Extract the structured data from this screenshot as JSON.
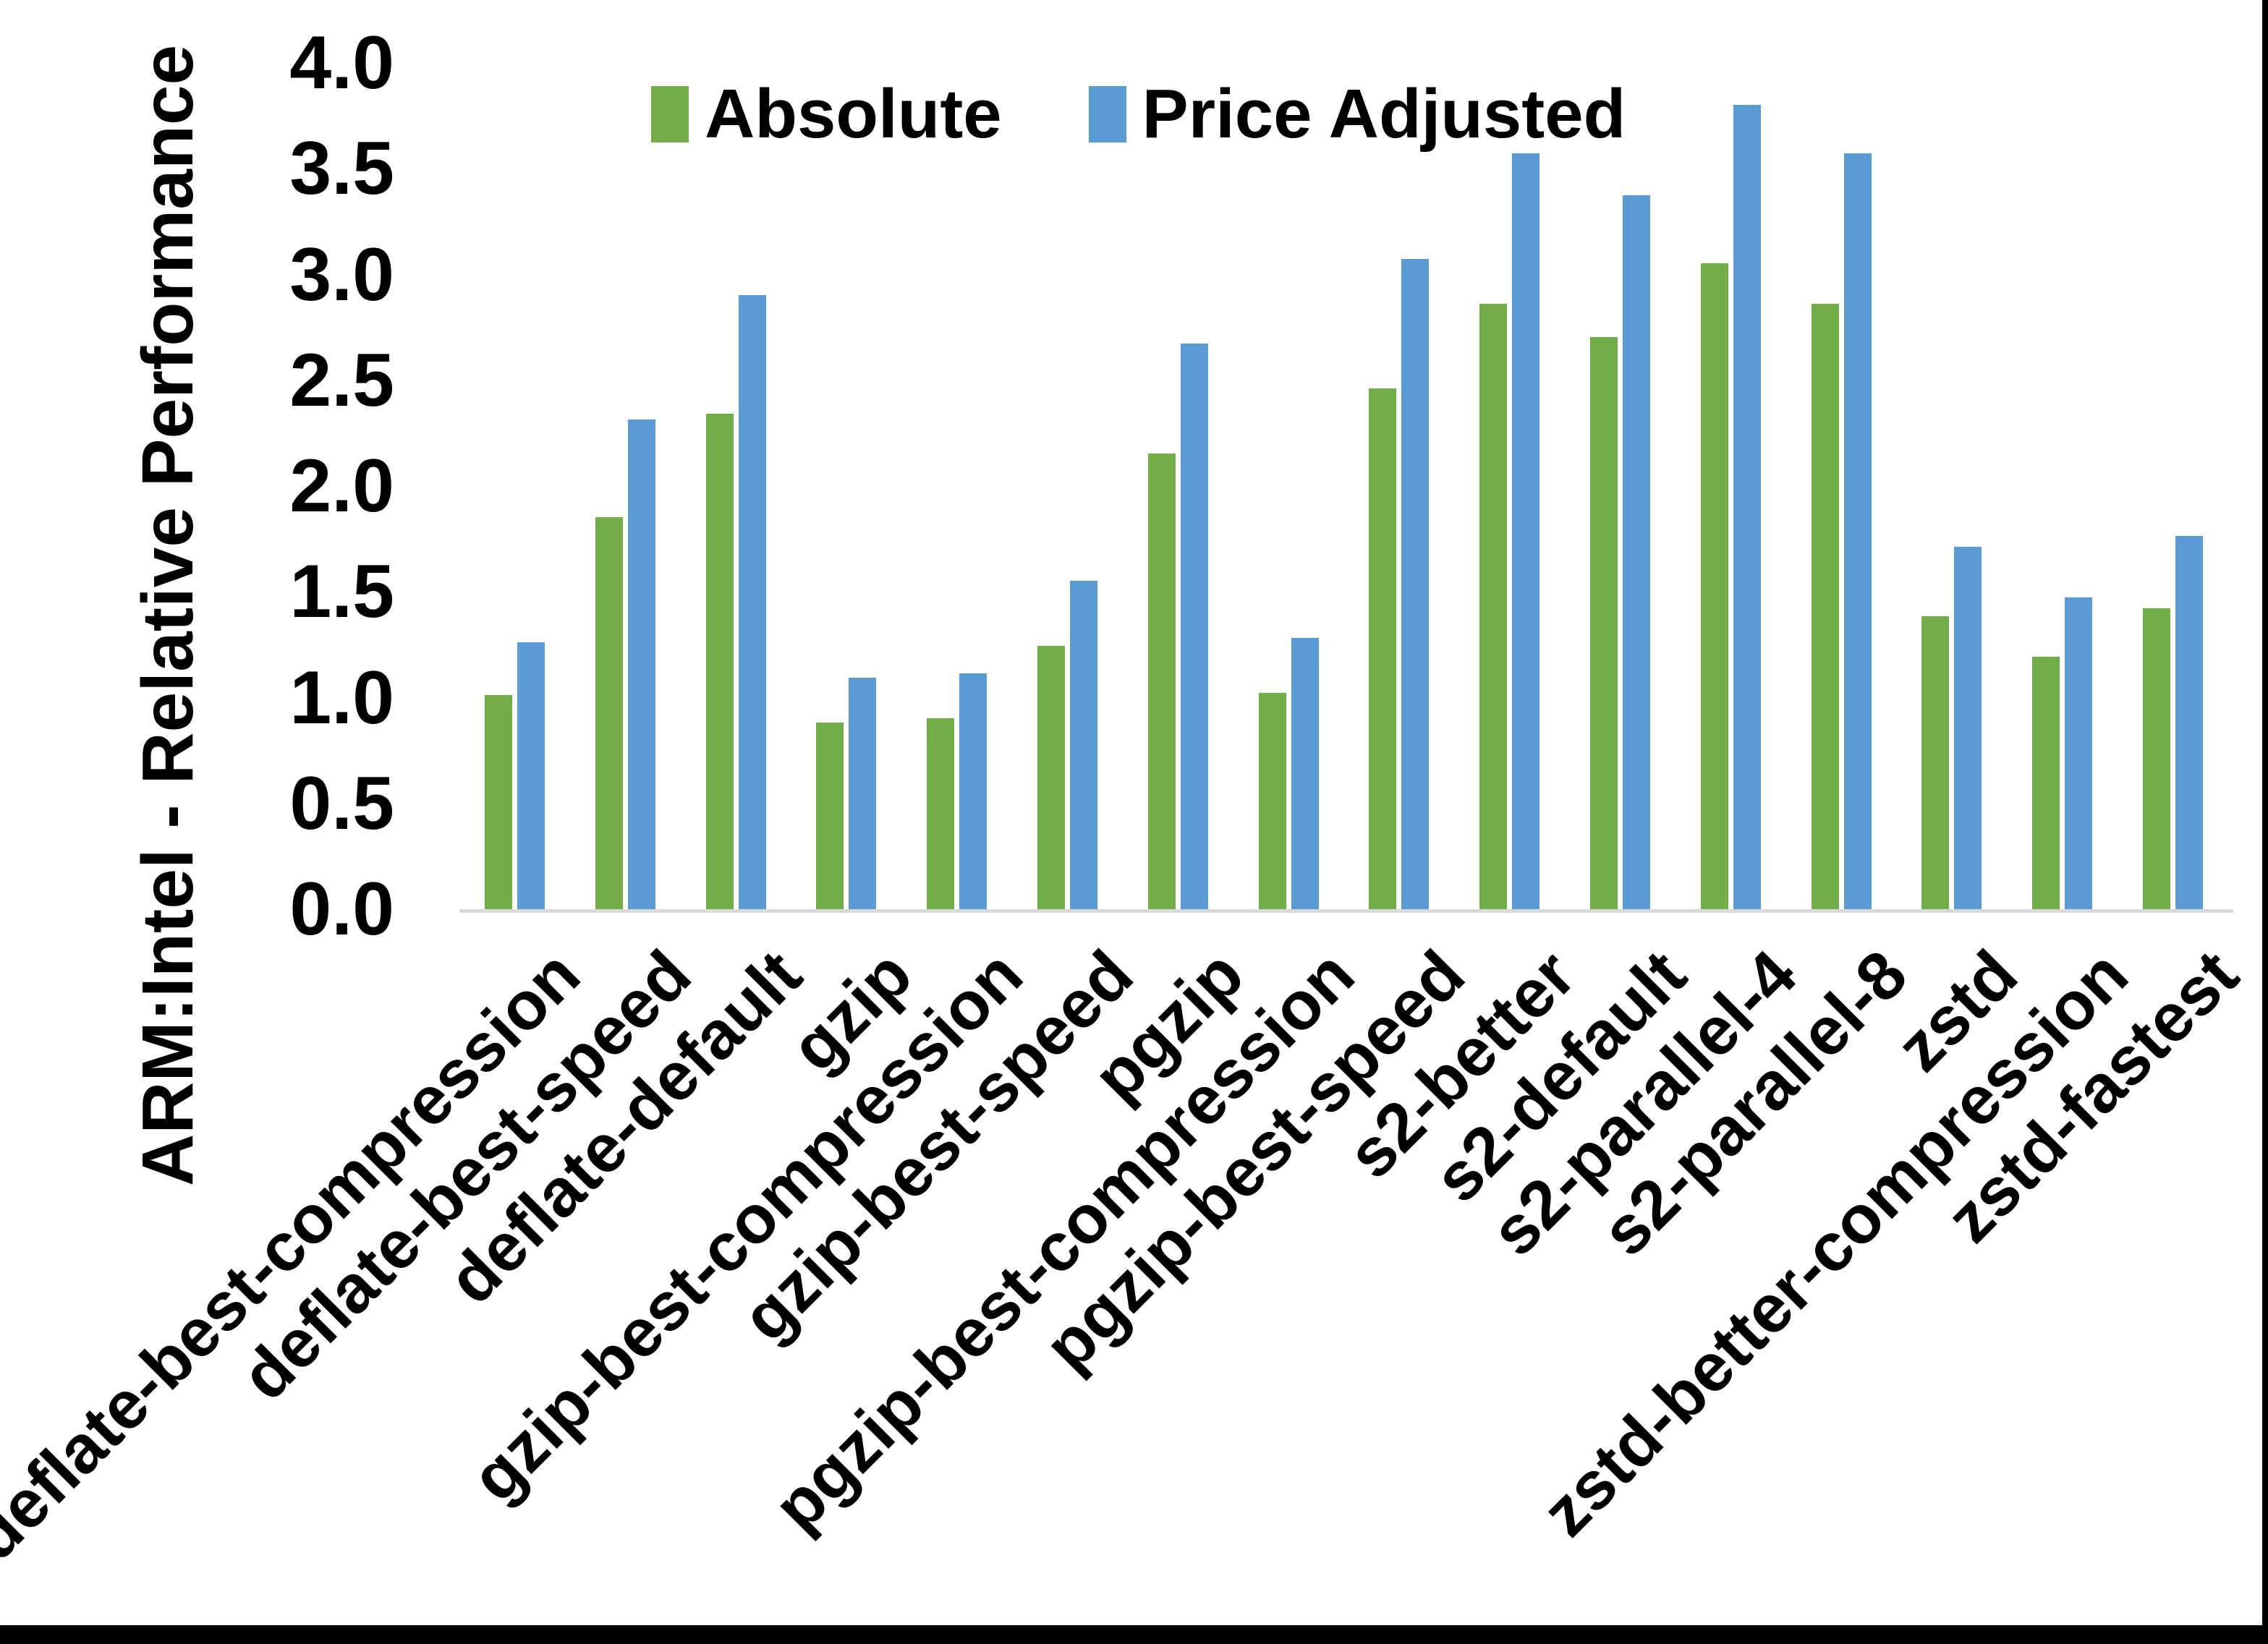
{
  "chart_data": {
    "type": "bar",
    "title": "",
    "xlabel": "",
    "ylabel": "ARM:Intel - Relative Performance",
    "ylim": [
      0.0,
      4.0
    ],
    "ytick_step": 0.5,
    "yticks": [
      "0.0",
      "0.5",
      "1.0",
      "1.5",
      "2.0",
      "2.5",
      "3.0",
      "3.5",
      "4.0"
    ],
    "grid": false,
    "legend_position": "top-center",
    "bar_orientation": "vertical",
    "categories": [
      "deflate-best-compression",
      "deflate-best-speed",
      "deflate-default",
      "gzip",
      "gzip-best-compression",
      "gzip-best-speed",
      "pgzip",
      "pgzip-best-compression",
      "pgzip-best-speed",
      "s2-better",
      "s2-default",
      "s2-parallel-4",
      "s2-parallel-8",
      "zstd",
      "zstd-better-compression",
      "zstd-fastest"
    ],
    "series": [
      {
        "name": "Absolute",
        "color": "#70AD47",
        "values": [
          1.02,
          1.86,
          2.35,
          0.89,
          0.91,
          1.25,
          2.16,
          1.03,
          2.47,
          2.87,
          2.71,
          3.06,
          2.87,
          1.39,
          1.2,
          1.43
        ]
      },
      {
        "name": "Price Adjusted",
        "color": "#5B9BD5",
        "values": [
          1.27,
          2.32,
          2.91,
          1.1,
          1.12,
          1.56,
          2.68,
          1.29,
          3.08,
          3.58,
          3.38,
          3.81,
          3.58,
          1.72,
          1.48,
          1.77
        ]
      }
    ]
  },
  "colors": {
    "axis_line": "#d9d9d9",
    "text": "#000000",
    "background": "#ffffff",
    "frame_border": "#000000"
  }
}
